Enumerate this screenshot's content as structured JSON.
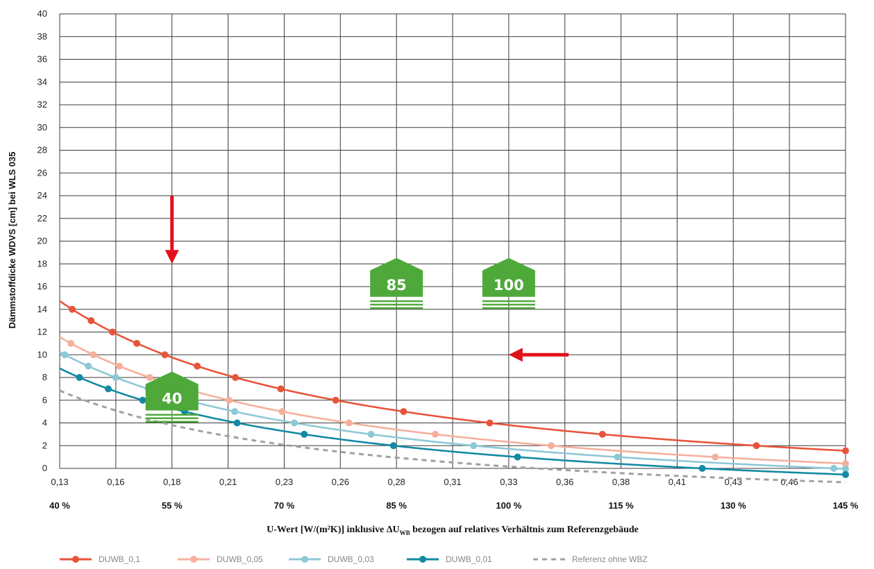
{
  "chart_data": {
    "type": "line",
    "title": "",
    "ylabel": "Dämmstoffdicke WDVS [cm] bei WLS 035",
    "xlabel_main": "U-Wert [W/(m²K)] inklusive ",
    "xlabel_delta": "ΔU",
    "xlabel_sub": "WB",
    "xlabel_rest": " bezogen auf relatives Verhältnis zum Referenzgebäude",
    "x_ticks": [
      "0,13",
      "0,16",
      "0,18",
      "0,21",
      "0,23",
      "0,26",
      "0,28",
      "0,31",
      "0,33",
      "0,36",
      "0,38",
      "0,41",
      "0,43",
      "0,46"
    ],
    "pct_ticks": [
      "40 %",
      "55 %",
      "70 %",
      "85 %",
      "100 %",
      "115 %",
      "130 %",
      "145 %"
    ],
    "pct_values": [
      40,
      55,
      70,
      85,
      100,
      115,
      130,
      145
    ],
    "y_ticks": [
      0,
      2,
      4,
      6,
      8,
      10,
      12,
      14,
      16,
      18,
      20,
      22,
      24,
      26,
      28,
      30,
      32,
      34,
      36,
      38,
      40
    ],
    "xlim_pct": [
      40,
      145
    ],
    "ylim": [
      0,
      40
    ],
    "grid": true,
    "legend_position": "bottom",
    "series": [
      {
        "name": "DUWB_0,1",
        "color": "#e8543a",
        "k": 7.28,
        "c": 3.47,
        "markers": true,
        "dashed": false
      },
      {
        "name": "DUWB_0,05",
        "color": "#f5b09c",
        "k": 6.15,
        "c": 3.82,
        "markers": true,
        "dashed": false
      },
      {
        "name": "DUWB_0,03",
        "color": "#8dc8d6",
        "k": 5.68,
        "c": 3.96,
        "markers": true,
        "dashed": false
      },
      {
        "name": "DUWB_0,01",
        "color": "#128aa3",
        "k": 5.16,
        "c": 4.1,
        "markers": true,
        "dashed": false
      },
      {
        "name": "Referenz ohne WBZ",
        "color": "#a0a0a0",
        "k": 4.46,
        "c": 4.3,
        "markers": false,
        "dashed": true
      }
    ],
    "annotations": {
      "badges": [
        {
          "label": "40",
          "pct": 55,
          "y": 4,
          "color": "#4fa93a"
        },
        {
          "label": "85",
          "pct": 85,
          "y": 14,
          "color": "#4fa93a"
        },
        {
          "label": "100",
          "pct": 100,
          "y": 14,
          "color": "#4fa93a"
        }
      ],
      "arrows": [
        {
          "from_pct": 55,
          "from_y": 24,
          "to_pct": 55,
          "to_y": 18,
          "color": "#e2101b"
        },
        {
          "from_pct": 108,
          "from_y": 10,
          "to_pct": 100,
          "to_y": 10,
          "color": "#e2101b"
        }
      ]
    }
  }
}
